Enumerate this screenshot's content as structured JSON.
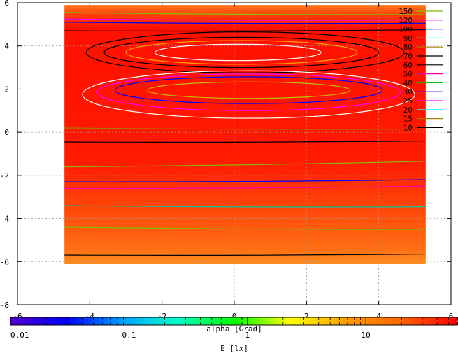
{
  "chart_data": {
    "type": "heatmap",
    "title": "",
    "xlabel": "alpha [Grad]",
    "ylabel": "",
    "xlim": [
      -6,
      6
    ],
    "ylim": [
      -8,
      6
    ],
    "x_ticks": [
      -6,
      -4,
      -2,
      0,
      2,
      4,
      6
    ],
    "y_ticks": [
      -8,
      -6,
      -4,
      -2,
      0,
      2,
      4,
      6
    ],
    "x_tick_labels": [
      "-6",
      "-4",
      "-2",
      "0",
      "2",
      "4",
      "6"
    ],
    "y_tick_labels": [
      "-8",
      "-6",
      "-4",
      "-2",
      "0",
      "2",
      "4",
      "6"
    ],
    "grid": true,
    "data_extent": {
      "x": [
        -4.7,
        5.3
      ],
      "y": [
        -6.1,
        5.9
      ]
    },
    "colorbar": {
      "label": "E [lx]",
      "scale": "log",
      "range": [
        0.01,
        60
      ],
      "tick_labels": [
        "0.01",
        "0.1",
        "1",
        "10"
      ],
      "tick_values": [
        0.01,
        0.1,
        1,
        10
      ],
      "stops": [
        "#5000c8",
        "#0000ff",
        "#00a0ff",
        "#00ffc8",
        "#00ff00",
        "#ffff00",
        "#ffa000",
        "#ff6400",
        "#ff0000"
      ]
    },
    "contour_levels": [
      {
        "value": 150,
        "label": "150",
        "color": "#80c000"
      },
      {
        "value": 120,
        "label": "120",
        "color": "#ff00ff"
      },
      {
        "value": 100,
        "label": "100",
        "color": "#0000ff"
      },
      {
        "value": 90,
        "label": "90",
        "color": "#00ffff"
      },
      {
        "value": 80,
        "label": "80",
        "color": "#a08000"
      },
      {
        "value": 70,
        "label": "70",
        "color": "#000000"
      },
      {
        "value": 60,
        "label": "60",
        "color": "#000000"
      },
      {
        "value": 50,
        "label": "50",
        "color": "#ff00a0"
      },
      {
        "value": 40,
        "label": "40",
        "color": "#00c000"
      },
      {
        "value": 30,
        "label": "30",
        "color": "#0000ff"
      },
      {
        "value": 25,
        "label": "25",
        "color": "#ff00ff"
      },
      {
        "value": 20,
        "label": "20",
        "color": "#00ffff"
      },
      {
        "value": 15,
        "label": "15",
        "color": "#a08000"
      },
      {
        "value": 10,
        "label": "10",
        "color": "#000000"
      }
    ],
    "contours": [
      {
        "type": "ellipse",
        "cx": 0.1,
        "cy": 3.7,
        "rx": 2.3,
        "ry": 0.38,
        "color": "#ffffff"
      },
      {
        "type": "ellipse",
        "cx": 0.2,
        "cy": 3.7,
        "rx": 3.2,
        "ry": 0.55,
        "color": "#ffa000"
      },
      {
        "type": "ellipse",
        "cx": 0.2,
        "cy": 3.7,
        "rx": 3.8,
        "ry": 0.7,
        "color": "#000000"
      },
      {
        "type": "ellipse",
        "cx": 0.3,
        "cy": 3.7,
        "rx": 4.4,
        "ry": 0.95,
        "color": "#000000"
      },
      {
        "type": "ellipse",
        "cx": 0.4,
        "cy": 1.95,
        "rx": 2.8,
        "ry": 0.38,
        "color": "#c0c000"
      },
      {
        "type": "ellipse",
        "cx": 0.4,
        "cy": 1.95,
        "rx": 3.7,
        "ry": 0.62,
        "color": "#0000ff"
      },
      {
        "type": "ellipse",
        "cx": 0.4,
        "cy": 1.85,
        "rx": 4.2,
        "ry": 0.85,
        "color": "#ff00ff"
      },
      {
        "type": "ellipse",
        "cx": 0.4,
        "cy": 1.75,
        "rx": 4.6,
        "ry": 1.1,
        "color": "#ffffff"
      },
      {
        "type": "line",
        "y0": 5.55,
        "y1": 5.45,
        "color": "#80c000"
      },
      {
        "type": "line",
        "y0": 5.25,
        "y1": 5.2,
        "color": "#ff00ff"
      },
      {
        "type": "line",
        "y0": 5.1,
        "y1": 5.05,
        "color": "#0000ff"
      },
      {
        "type": "line",
        "y0": 4.7,
        "y1": 4.75,
        "color": "#000000"
      },
      {
        "type": "line",
        "y0": 0.2,
        "y1": 0.15,
        "color": "#a08000"
      },
      {
        "type": "line",
        "y0": -0.45,
        "y1": -0.4,
        "color": "#000000"
      },
      {
        "type": "line",
        "y0": -1.6,
        "y1": -1.35,
        "color": "#80c000"
      },
      {
        "type": "line",
        "y0": -2.3,
        "y1": -2.2,
        "color": "#0000ff"
      },
      {
        "type": "line",
        "y0": -2.6,
        "y1": -2.5,
        "color": "#ff00a0"
      },
      {
        "type": "line",
        "y0": -3.4,
        "y1": -3.45,
        "color": "#00c8a0"
      },
      {
        "type": "line",
        "y0": -4.4,
        "y1": -4.5,
        "color": "#80c000"
      },
      {
        "type": "line",
        "y0": -5.7,
        "y1": -5.65,
        "color": "#000000"
      }
    ]
  }
}
